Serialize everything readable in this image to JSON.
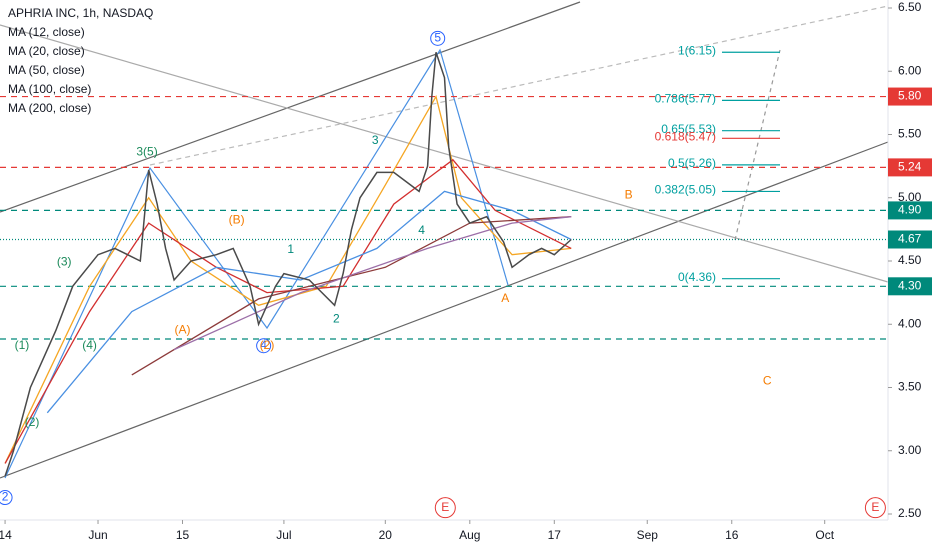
{
  "chart_data": {
    "type": "line",
    "title": "APHRIA INC, 1h, NASDAQ",
    "xlim": [
      -0.6,
      103.9
    ],
    "ylim": [
      2.5,
      6.5
    ],
    "xticks": [
      {
        "value": 0,
        "label": "14"
      },
      {
        "value": 11,
        "label": "Jun"
      },
      {
        "value": 21,
        "label": "15"
      },
      {
        "value": 33,
        "label": "Jul"
      },
      {
        "value": 45,
        "label": "20"
      },
      {
        "value": 55,
        "label": "Aug"
      },
      {
        "value": 65,
        "label": "17"
      },
      {
        "value": 76,
        "label": "Sep"
      },
      {
        "value": 86,
        "label": "16"
      },
      {
        "value": 97,
        "label": "Oct"
      }
    ],
    "yticks": [
      {
        "value": 2.5,
        "label": "2.50"
      },
      {
        "value": 3,
        "label": "3.00"
      },
      {
        "value": 3.5,
        "label": "3.50"
      },
      {
        "value": 4,
        "label": "4.00"
      },
      {
        "value": 4.5,
        "label": "4.50"
      },
      {
        "value": 5,
        "label": "5.00"
      },
      {
        "value": 5.5,
        "label": "5.50"
      },
      {
        "value": 6,
        "label": "6.00"
      },
      {
        "value": 6.5,
        "label": "6.50"
      }
    ],
    "price": {
      "color": "#4a4a4a",
      "x": [
        0,
        1,
        3,
        6,
        8,
        11,
        13,
        16,
        17,
        18,
        19,
        20,
        22,
        25,
        27,
        29,
        30,
        32,
        33,
        36,
        39,
        40,
        41,
        42,
        44,
        46,
        49,
        50,
        50.5,
        51,
        52,
        52.5,
        53.5,
        55,
        57,
        59,
        60,
        62,
        63.5,
        65,
        67
      ],
      "values": [
        2.8,
        3.0,
        3.5,
        3.95,
        4.3,
        4.55,
        4.6,
        4.5,
        5.22,
        4.95,
        4.6,
        4.35,
        4.5,
        4.55,
        4.6,
        4.3,
        4.0,
        4.3,
        4.4,
        4.35,
        4.15,
        4.4,
        4.75,
        5.0,
        5.2,
        5.2,
        5.05,
        5.25,
        5.8,
        6.15,
        5.95,
        5.4,
        4.95,
        4.8,
        4.85,
        4.65,
        4.45,
        4.55,
        4.6,
        4.55,
        4.67
      ]
    },
    "series": [
      {
        "name": "MA (12, close)",
        "color": "#f5a623",
        "x": [
          0,
          10,
          17,
          22,
          30,
          38,
          45,
          51,
          54,
          60,
          67
        ],
        "values": [
          2.9,
          4.3,
          5.0,
          4.5,
          4.15,
          4.3,
          5.1,
          5.8,
          5.0,
          4.55,
          4.6
        ]
      },
      {
        "name": "MA (20, close)",
        "color": "#d32f2f",
        "x": [
          0,
          10,
          17,
          25,
          31,
          40,
          46,
          51,
          53,
          58,
          67
        ],
        "values": [
          2.9,
          4.1,
          4.8,
          4.45,
          4.25,
          4.3,
          4.95,
          5.2,
          5.3,
          4.9,
          4.6
        ]
      },
      {
        "name": "MA (50, close)",
        "color": "#4a90e2",
        "x": [
          5,
          15,
          25,
          35,
          44,
          52,
          60,
          67
        ],
        "values": [
          3.3,
          4.1,
          4.45,
          4.35,
          4.6,
          5.05,
          4.9,
          4.67
        ]
      },
      {
        "name": "MA (100, close)",
        "color": "#8d3b3b",
        "x": [
          15,
          30,
          45,
          55,
          67
        ],
        "values": [
          3.6,
          4.2,
          4.45,
          4.8,
          4.85
        ]
      },
      {
        "name": "MA (200, close)",
        "color": "#9c6fa8",
        "x": [
          20,
          35,
          50,
          60,
          67
        ],
        "values": [
          3.8,
          4.25,
          4.6,
          4.8,
          4.85
        ]
      }
    ],
    "levels": [
      {
        "value": 5.8,
        "label": "5.80",
        "color": "#e53935"
      },
      {
        "value": 5.24,
        "label": "5.24",
        "color": "#e53935"
      },
      {
        "value": 4.9,
        "label": "4.90",
        "color": "#00897b"
      },
      {
        "value": 4.67,
        "label": "4.67",
        "color": "#00897b"
      },
      {
        "value": 4.3,
        "label": "4.30",
        "color": "#00897b"
      }
    ],
    "fib": [
      {
        "label": "1(6.15)",
        "value": 6.15,
        "color": "#00a0a0"
      },
      {
        "label": "0.786(5.77)",
        "value": 5.77,
        "color": "#00a0a0"
      },
      {
        "label": "0.65(5.53)",
        "value": 5.53,
        "color": "#00a0a0"
      },
      {
        "label": "0.618(5.47)",
        "value": 5.47,
        "color": "#e53935"
      },
      {
        "label": "0.5(5.26)",
        "value": 5.26,
        "color": "#00a0a0"
      },
      {
        "label": "0.382(5.05)",
        "value": 5.05,
        "color": "#00a0a0"
      },
      {
        "label": "0(4.36)",
        "value": 4.36,
        "color": "#00a0a0"
      }
    ],
    "annotations": [
      {
        "text": "(3)",
        "x": 7,
        "y": 4.49,
        "color": "#1b8a5a"
      },
      {
        "text": "(1)",
        "x": 2,
        "y": 3.83,
        "color": "#1b8a5a"
      },
      {
        "text": "(2)",
        "x": 3.2,
        "y": 3.22,
        "color": "#1b8a5a"
      },
      {
        "text": "(4)",
        "x": 10,
        "y": 3.83,
        "color": "#1b8a5a"
      },
      {
        "text": "3(5)",
        "x": 16.8,
        "y": 5.36,
        "color": "#1b8a5a"
      },
      {
        "text": "(B)",
        "x": 27.4,
        "y": 4.82,
        "color": "#f57c00"
      },
      {
        "text": "(A)",
        "x": 21,
        "y": 3.95,
        "color": "#f57c00"
      },
      {
        "text": "4",
        "x": 30.6,
        "y": 3.83,
        "color": "#2962ff"
      },
      {
        "text": "(2)",
        "x": 31,
        "y": 3.83,
        "color": "#f57c00"
      },
      {
        "text": "1",
        "x": 33.8,
        "y": 4.59,
        "color": "#00897b"
      },
      {
        "text": "2",
        "x": 39.2,
        "y": 4.04,
        "color": "#00897b"
      },
      {
        "text": "3",
        "x": 43.8,
        "y": 5.45,
        "color": "#00897b"
      },
      {
        "text": "4",
        "x": 49.3,
        "y": 4.74,
        "color": "#00897b"
      },
      {
        "text": "5",
        "x": 51.2,
        "y": 6.26,
        "color": "#2962ff"
      },
      {
        "text": "A",
        "x": 59.2,
        "y": 4.2,
        "color": "#f57c00"
      },
      {
        "text": "B",
        "x": 73.8,
        "y": 5.02,
        "color": "#f57c00"
      },
      {
        "text": "C",
        "x": 90.2,
        "y": 3.55,
        "color": "#f57c00"
      },
      {
        "text": "E",
        "x": 52.1,
        "y": 2.55,
        "color": "#e53935"
      },
      {
        "text": "E",
        "x": 103,
        "y": 2.55,
        "color": "#e53935"
      },
      {
        "text": "2",
        "x": 0,
        "y": 2.63,
        "color": "#2962ff"
      }
    ]
  }
}
